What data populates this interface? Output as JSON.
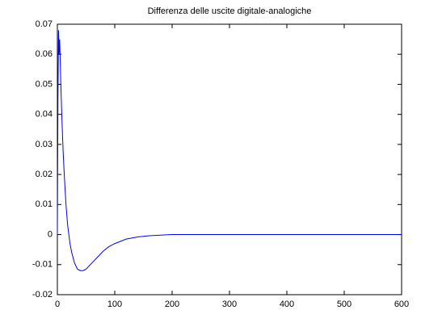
{
  "chart_data": {
    "type": "line",
    "title": "Differenza delle uscite digitale-analogiche",
    "x": [
      0,
      1,
      2,
      3,
      4,
      5,
      6,
      8,
      10,
      12,
      15,
      18,
      20,
      22,
      25,
      30,
      35,
      40,
      45,
      50,
      60,
      70,
      80,
      90,
      100,
      120,
      140,
      160,
      180,
      200,
      300,
      400,
      500,
      600
    ],
    "series": [
      {
        "color": "#0000ff",
        "values": [
          0,
          0.045,
          0.068,
          0.06,
          0.065,
          0.058,
          0.05,
          0.038,
          0.028,
          0.02,
          0.01,
          0.003,
          0,
          -0.003,
          -0.006,
          -0.0095,
          -0.0115,
          -0.012,
          -0.012,
          -0.0115,
          -0.0095,
          -0.0075,
          -0.0055,
          -0.004,
          -0.003,
          -0.0015,
          -0.0008,
          -0.0004,
          -0.0002,
          0,
          0,
          0,
          0,
          0
        ]
      }
    ],
    "xlim": [
      0,
      600
    ],
    "xticks": [
      0,
      100,
      200,
      300,
      400,
      500,
      600
    ],
    "ylim": [
      -0.02,
      0.07
    ],
    "yticks": [
      -0.02,
      -0.01,
      0,
      0.01,
      0.02,
      0.03,
      0.04,
      0.05,
      0.06,
      0.07
    ]
  }
}
